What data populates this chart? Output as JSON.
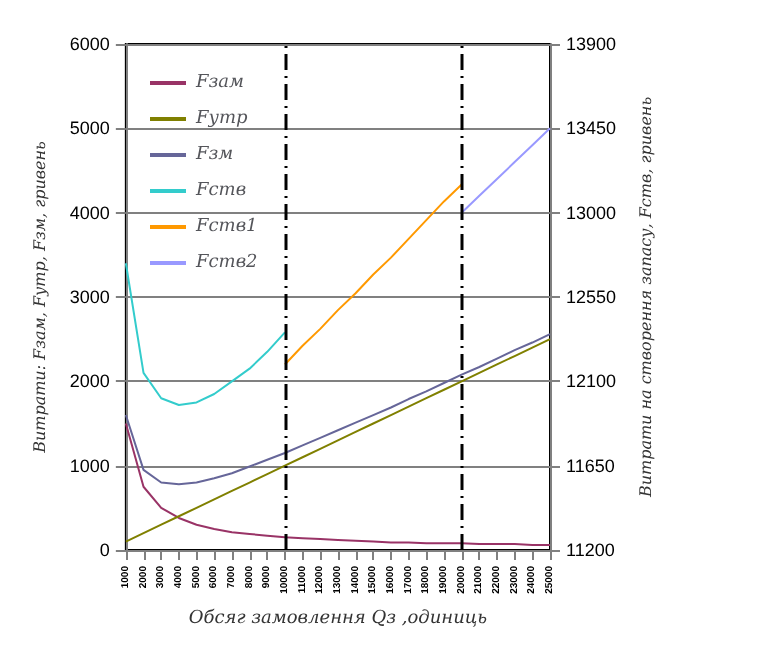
{
  "chart_data": {
    "type": "line",
    "xlabel": "Обсяг замовлення Qз ,одиниць",
    "ylabel": "Витрати: Fзам, Fутр, Fзм, гривень",
    "y2label": "Витрати на створення запасу, Fств, гривень",
    "categories": [
      "1000",
      "2000",
      "3000",
      "4000",
      "5000",
      "6000",
      "7000",
      "8000",
      "9000",
      "10000",
      "11000",
      "12000",
      "13000",
      "14000",
      "15000",
      "16000",
      "17000",
      "18000",
      "19000",
      "20000",
      "21000",
      "22000",
      "23000",
      "24000",
      "25000"
    ],
    "series": [
      {
        "name": "Fзам",
        "color": "#993366",
        "values": [
          1500,
          750,
          500,
          380,
          300,
          250,
          210,
          190,
          170,
          150,
          140,
          130,
          120,
          110,
          100,
          90,
          90,
          80,
          80,
          80,
          70,
          70,
          70,
          60,
          60
        ]
      },
      {
        "name": "Fутр",
        "color": "#808000",
        "values": [
          100,
          200,
          300,
          400,
          500,
          600,
          700,
          800,
          900,
          1000,
          1100,
          1200,
          1300,
          1400,
          1500,
          1600,
          1700,
          1800,
          1900,
          2000,
          2100,
          2200,
          2300,
          2400,
          2500
        ]
      },
      {
        "name": "Fзм",
        "color": "#666699",
        "values": [
          1600,
          950,
          800,
          780,
          800,
          850,
          910,
          990,
          1070,
          1150,
          1240,
          1330,
          1420,
          1510,
          1600,
          1690,
          1790,
          1880,
          1980,
          2080,
          2170,
          2270,
          2370,
          2460,
          2560
        ]
      },
      {
        "name": "Fств",
        "color": "#33cccc",
        "values": [
          3400,
          2100,
          1800,
          1720,
          1750,
          1850,
          2000,
          2150,
          2350,
          2580,
          null,
          null,
          null,
          null,
          null,
          null,
          null,
          null,
          null,
          null,
          null,
          null,
          null,
          null,
          null
        ]
      },
      {
        "name": "Fств1",
        "color": "#ff9900",
        "axis": "y2",
        "values": [
          null,
          null,
          null,
          null,
          null,
          null,
          null,
          null,
          null,
          12190,
          12290,
          12380,
          12480,
          12570,
          12670,
          12760,
          12860,
          12960,
          13060,
          13150,
          null,
          null,
          null,
          null,
          null
        ]
      },
      {
        "name": "Fств2",
        "color": "#9999ff",
        "axis": "y2",
        "values": [
          null,
          null,
          null,
          null,
          null,
          null,
          null,
          null,
          null,
          null,
          null,
          null,
          null,
          null,
          null,
          null,
          null,
          null,
          null,
          13000,
          13090,
          13180,
          13270,
          13360,
          13450
        ]
      }
    ],
    "ylim": [
      0,
      6000
    ],
    "yticks": [
      0,
      1000,
      2000,
      3000,
      4000,
      5000,
      6000
    ],
    "y2lim": [
      11200,
      13900
    ],
    "y2ticks": [
      11200,
      11650,
      12100,
      12550,
      13000,
      13450,
      13900
    ],
    "ref_lines": [
      {
        "axis": "x",
        "value": "10000",
        "line_style": "dashdot",
        "color": "#000000"
      },
      {
        "axis": "x",
        "value": "20000",
        "line_style": "dashdot",
        "color": "#000000"
      }
    ],
    "grid": "y",
    "legend": "top left",
    "marker": "none",
    "line_style": "solid"
  }
}
